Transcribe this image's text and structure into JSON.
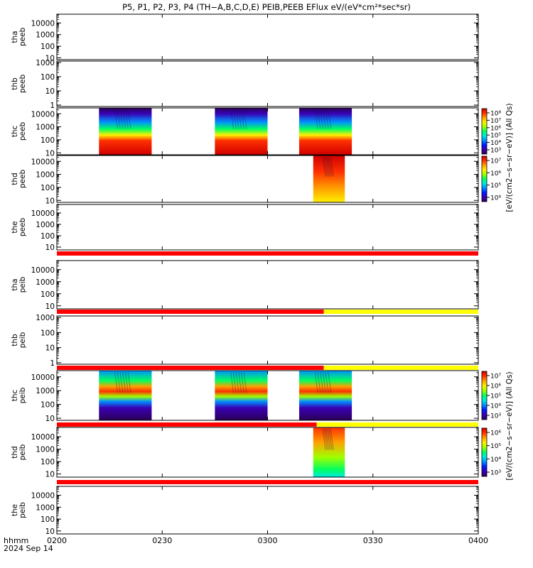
{
  "chart_data": {
    "type": "heatmap",
    "title": "P5, P1, P2, P3, P4 (TH−A,B,C,D,E) PEIB,PEEB EFlux eV/(eV*cm²*sec*sr)",
    "date_label": "2024 Sep 14",
    "time_label": "hhmm",
    "x_ticks": [
      "0200",
      "0230",
      "0300",
      "0330",
      "0400"
    ],
    "colorbar_labels": {
      "peeb": "[eV/(cm2−s−sr−eV)] (All Qs)",
      "peib": "[eV/(cm2−s−sr−eV)] (All Qs)"
    },
    "colorbars": [
      {
        "panel": "thc-peeb",
        "ticks": [
          "10⁸",
          "10⁷",
          "10⁶",
          "10⁵",
          "10⁴",
          "10³"
        ]
      },
      {
        "panel": "thd-peeb",
        "ticks": [
          "10⁷",
          "10⁶",
          "10⁵",
          "10⁴"
        ]
      },
      {
        "panel": "thc-peib",
        "ticks": [
          "10⁷",
          "10⁶",
          "10⁵",
          "10⁴",
          "10³"
        ]
      },
      {
        "panel": "thd-peib",
        "ticks": [
          "10⁶",
          "10⁵",
          "10⁴",
          "10³"
        ]
      }
    ],
    "panels": [
      {
        "id": "tha-peeb",
        "label": [
          "tha",
          "peeb"
        ],
        "y_ticks": [
          "10000",
          "1000",
          "100",
          "10"
        ],
        "ylog": [
          0.85,
          4.75
        ],
        "blocks": []
      },
      {
        "id": "thb-peeb",
        "label": [
          "thb",
          "peeb"
        ],
        "y_ticks": [
          "1000",
          "100",
          "10",
          "1"
        ],
        "ylog": [
          -0.1,
          3.1
        ],
        "blocks": []
      },
      {
        "id": "thc-peeb",
        "label": [
          "thc",
          "peeb"
        ],
        "y_ticks": [
          "10000",
          "1000",
          "100",
          "10"
        ],
        "ylog": [
          0.85,
          4.45
        ],
        "blocks": [
          {
            "start": "02:12",
            "end": "02:27"
          },
          {
            "start": "02:45",
            "end": "03:00"
          },
          {
            "start": "03:09",
            "end": "03:24"
          }
        ]
      },
      {
        "id": "thd-peeb",
        "label": [
          "thd",
          "peeb"
        ],
        "y_ticks": [
          "10000",
          "1000",
          "100",
          "10"
        ],
        "ylog": [
          0.85,
          4.45
        ],
        "blocks": [
          {
            "start": "03:13",
            "end": "03:22"
          }
        ]
      },
      {
        "id": "the-peeb",
        "label": [
          "the",
          "peeb"
        ],
        "y_ticks": [
          "10000",
          "1000",
          "100",
          "10"
        ],
        "ylog": [
          0.75,
          4.75
        ],
        "blocks": []
      },
      {
        "id": "tha-peib",
        "label": [
          "tha",
          "peib"
        ],
        "y_ticks": [
          "10000",
          "1000",
          "100",
          "10"
        ],
        "ylog": [
          0.75,
          4.75
        ],
        "blocks": []
      },
      {
        "id": "thb-peib",
        "label": [
          "thb",
          "peib"
        ],
        "y_ticks": [
          "1000",
          "100",
          "10",
          "1"
        ],
        "ylog": [
          -0.1,
          3.1
        ],
        "blocks": []
      },
      {
        "id": "thc-peib",
        "label": [
          "thc",
          "peib"
        ],
        "y_ticks": [
          "10000",
          "1000",
          "100",
          "10"
        ],
        "ylog": [
          0.85,
          4.45
        ],
        "blocks": [
          {
            "start": "02:12",
            "end": "02:27"
          },
          {
            "start": "02:45",
            "end": "03:00"
          },
          {
            "start": "03:09",
            "end": "03:24"
          }
        ]
      },
      {
        "id": "thd-peib",
        "label": [
          "thd",
          "peib"
        ],
        "y_ticks": [
          "10000",
          "1000",
          "100",
          "10"
        ],
        "ylog": [
          0.75,
          4.75
        ],
        "blocks": [
          {
            "start": "03:13",
            "end": "03:22"
          }
        ]
      },
      {
        "id": "the-peib",
        "label": [
          "the",
          "peib"
        ],
        "y_ticks": [
          "10000",
          "1000",
          "100",
          "10"
        ],
        "ylog": [
          0.75,
          4.75
        ],
        "blocks": []
      }
    ],
    "status_bars": [
      {
        "after_panel": "the-peeb",
        "segments": [
          {
            "start": "02:00",
            "end": "04:00",
            "color": "#ff0000"
          }
        ]
      },
      {
        "after_panel": "tha-peib",
        "segments": [
          {
            "start": "02:00",
            "end": "03:16",
            "color": "#ff0000"
          },
          {
            "start": "03:16",
            "end": "04:00",
            "color": "#ffff00"
          }
        ]
      },
      {
        "after_panel": "thb-peib",
        "segments": [
          {
            "start": "02:00",
            "end": "03:16",
            "color": "#ff0000"
          },
          {
            "start": "03:16",
            "end": "04:00",
            "color": "#ffff00"
          }
        ]
      },
      {
        "after_panel": "thc-peib",
        "segments": [
          {
            "start": "02:00",
            "end": "03:14",
            "color": "#ff0000"
          },
          {
            "start": "03:14",
            "end": "04:00",
            "color": "#ffff00"
          }
        ]
      },
      {
        "after_panel": "thd-peib",
        "segments": [
          {
            "start": "02:00",
            "end": "04:00",
            "color": "#ff0000"
          }
        ]
      }
    ],
    "colormap": [
      "#2a0055",
      "#3a00b4",
      "#0018ff",
      "#0090ff",
      "#00e8e0",
      "#00ff60",
      "#a0ff00",
      "#fff000",
      "#ffa000",
      "#ff3000",
      "#d00000"
    ]
  }
}
